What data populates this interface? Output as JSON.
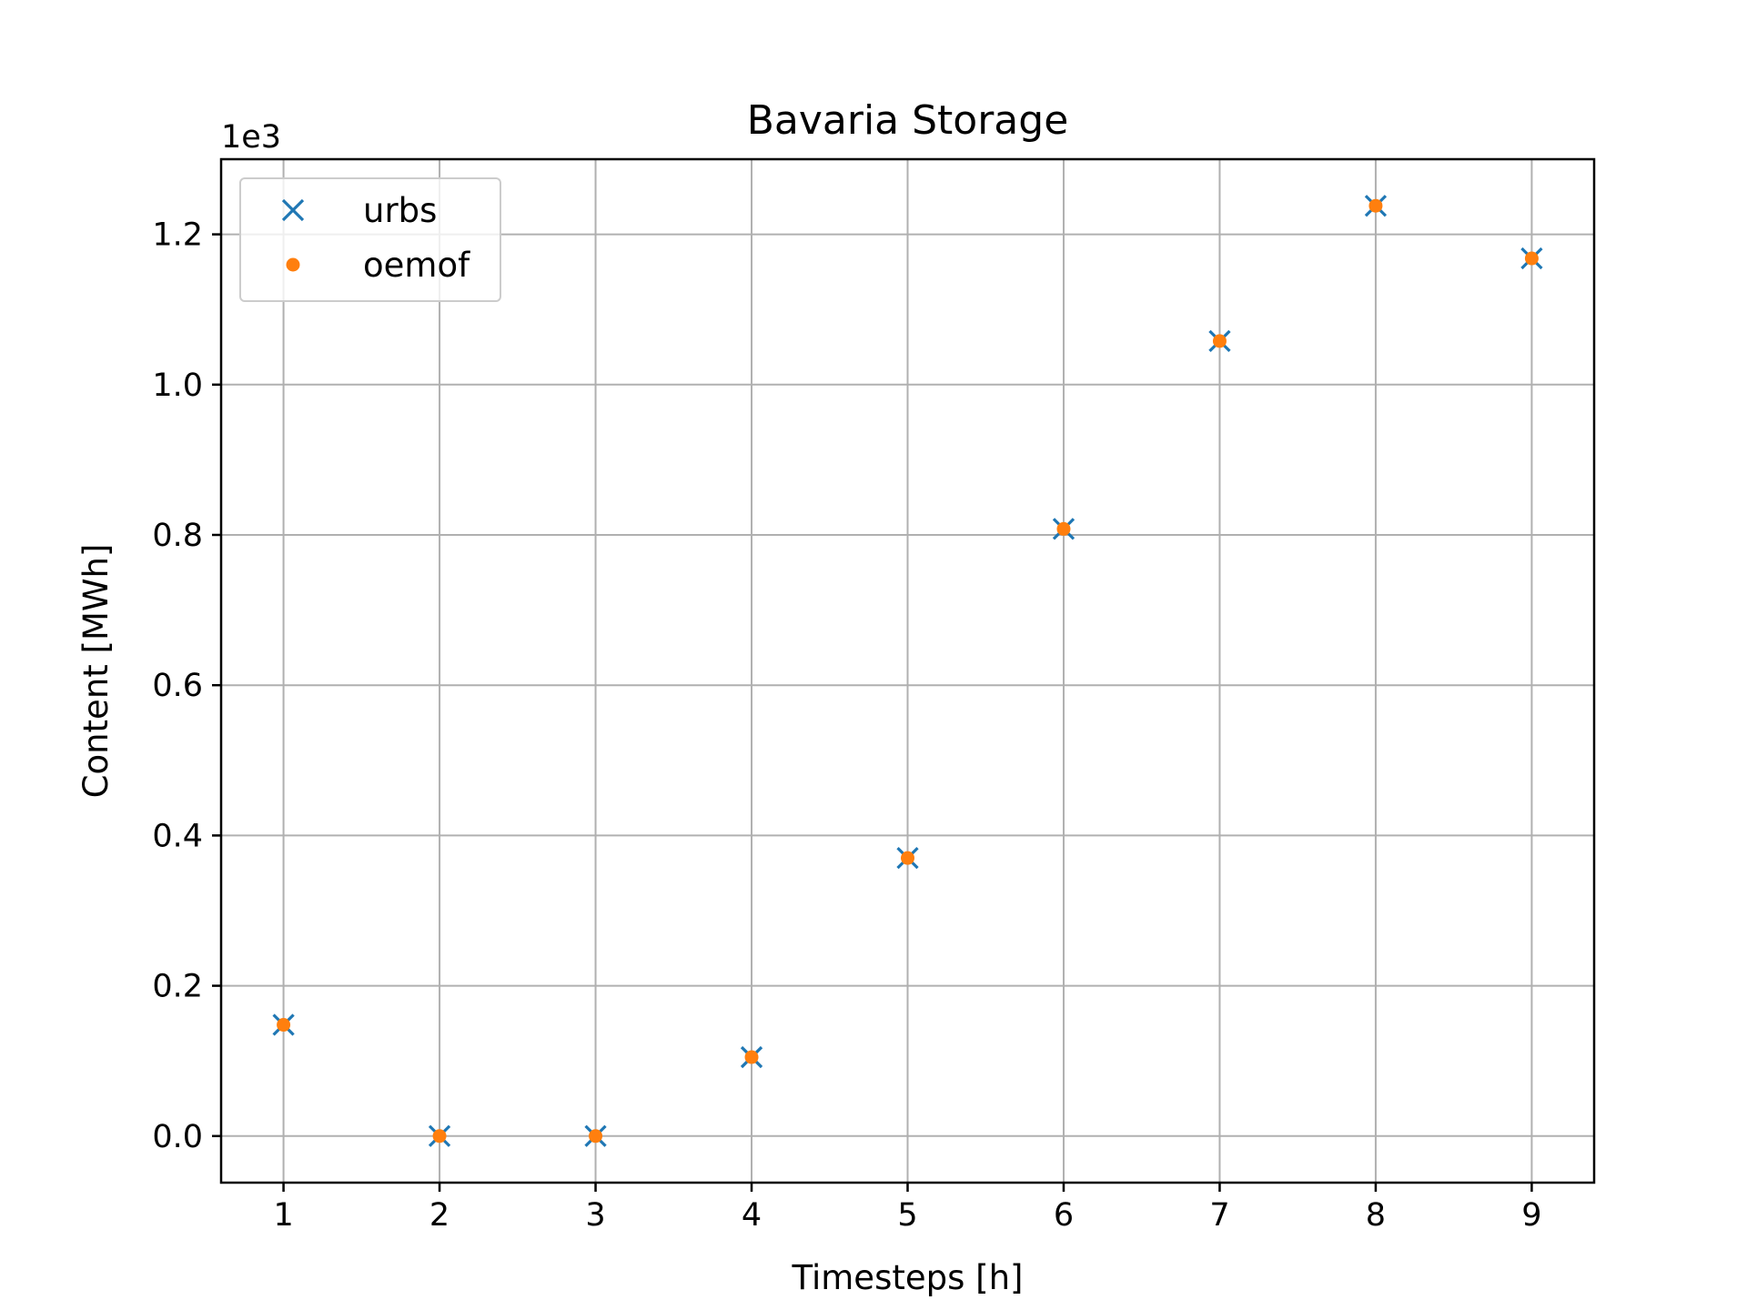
{
  "chart_data": {
    "type": "scatter",
    "title": "Bavaria Storage",
    "xlabel": "Timesteps [h]",
    "ylabel": "Content [MWh]",
    "offset_text": "1e3",
    "x": [
      1,
      2,
      3,
      4,
      5,
      6,
      7,
      8,
      9
    ],
    "xlim": [
      0.6,
      9.4
    ],
    "ylim": [
      -0.062,
      1.3
    ],
    "xticks": [
      1,
      2,
      3,
      4,
      5,
      6,
      7,
      8,
      9
    ],
    "yticks": [
      0.0,
      0.2,
      0.4,
      0.6,
      0.8,
      1.0,
      1.2
    ],
    "ytick_labels": [
      "0.0",
      "0.2",
      "0.4",
      "0.6",
      "0.8",
      "1.0",
      "1.2"
    ],
    "grid": true,
    "legend_position": "upper-left",
    "series": [
      {
        "name": "urbs",
        "marker": "x",
        "color": "#1f77b4",
        "values": [
          0.148,
          0.0,
          0.0,
          0.105,
          0.37,
          0.808,
          1.058,
          1.238,
          1.168
        ]
      },
      {
        "name": "oemof",
        "marker": "dot",
        "color": "#ff7f0e",
        "values": [
          0.148,
          0.0,
          0.0,
          0.105,
          0.37,
          0.808,
          1.058,
          1.238,
          1.168
        ]
      }
    ]
  }
}
